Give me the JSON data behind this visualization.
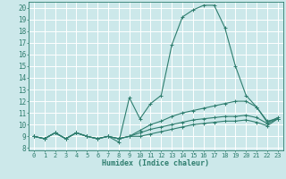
{
  "title": "",
  "xlabel": "Humidex (Indice chaleur)",
  "xlim": [
    -0.5,
    23.5
  ],
  "ylim": [
    7.8,
    20.5
  ],
  "xticks": [
    0,
    1,
    2,
    3,
    4,
    5,
    6,
    7,
    8,
    9,
    10,
    11,
    12,
    13,
    14,
    15,
    16,
    17,
    18,
    19,
    20,
    21,
    22,
    23
  ],
  "yticks": [
    8,
    9,
    10,
    11,
    12,
    13,
    14,
    15,
    16,
    17,
    18,
    19,
    20
  ],
  "bg_color": "#cce8ea",
  "line_color": "#2e7d6e",
  "grid_color": "#ffffff",
  "lines": [
    {
      "x": [
        0,
        1,
        2,
        3,
        4,
        5,
        6,
        7,
        8,
        9,
        10,
        11,
        12,
        13,
        14,
        15,
        16,
        17,
        18,
        19,
        20,
        21,
        22,
        23
      ],
      "y": [
        9.0,
        8.8,
        9.3,
        8.8,
        9.3,
        9.0,
        8.8,
        9.0,
        8.5,
        12.3,
        10.5,
        11.8,
        12.5,
        16.8,
        19.2,
        19.8,
        20.2,
        20.2,
        18.3,
        15.0,
        12.5,
        11.5,
        10.2,
        10.6
      ]
    },
    {
      "x": [
        0,
        1,
        2,
        3,
        4,
        5,
        6,
        7,
        8,
        9,
        10,
        11,
        12,
        13,
        14,
        15,
        16,
        17,
        18,
        19,
        20,
        21,
        22,
        23
      ],
      "y": [
        9.0,
        8.8,
        9.3,
        8.8,
        9.3,
        9.0,
        8.8,
        9.0,
        8.8,
        9.0,
        9.5,
        10.0,
        10.3,
        10.7,
        11.0,
        11.2,
        11.4,
        11.6,
        11.8,
        12.0,
        12.0,
        11.5,
        10.3,
        10.5
      ]
    },
    {
      "x": [
        0,
        1,
        2,
        3,
        4,
        5,
        6,
        7,
        8,
        9,
        10,
        11,
        12,
        13,
        14,
        15,
        16,
        17,
        18,
        19,
        20,
        21,
        22,
        23
      ],
      "y": [
        9.0,
        8.8,
        9.3,
        8.8,
        9.3,
        9.0,
        8.8,
        9.0,
        8.8,
        9.0,
        9.3,
        9.6,
        9.8,
        10.0,
        10.2,
        10.4,
        10.5,
        10.6,
        10.7,
        10.7,
        10.8,
        10.6,
        10.1,
        10.5
      ]
    },
    {
      "x": [
        0,
        1,
        2,
        3,
        4,
        5,
        6,
        7,
        8,
        9,
        10,
        11,
        12,
        13,
        14,
        15,
        16,
        17,
        18,
        19,
        20,
        21,
        22,
        23
      ],
      "y": [
        9.0,
        8.8,
        9.3,
        8.8,
        9.3,
        9.0,
        8.8,
        9.0,
        8.8,
        9.0,
        9.0,
        9.2,
        9.4,
        9.6,
        9.8,
        10.0,
        10.1,
        10.2,
        10.3,
        10.3,
        10.4,
        10.2,
        9.9,
        10.5
      ]
    }
  ]
}
